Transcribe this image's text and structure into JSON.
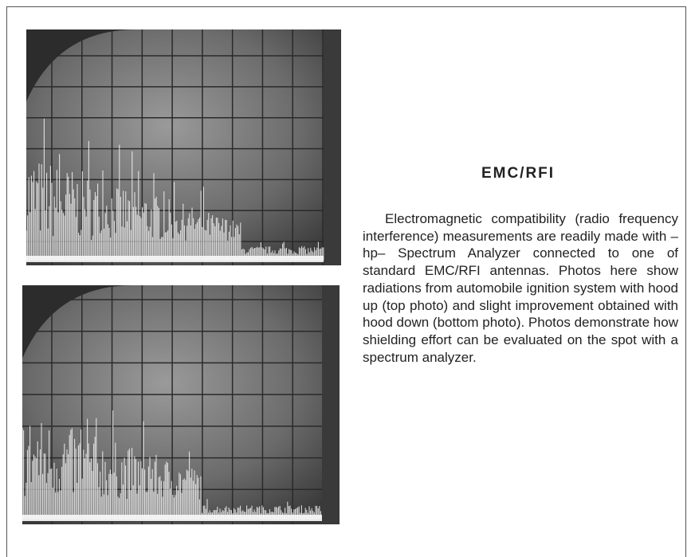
{
  "heading": "EMC/RFI",
  "body": "Electromagnetic compatibility (radio frequency interference) measurements are readily made with –hp– Spectrum Analyzer connected to one of standard EMC/RFI antennas. Photos here show radiations from automobile ignition system with hood up (top photo) and slight improvement obtained with hood down (bottom photo). Photos demonstrate how shielding effort can be evaluated on the spot with a spectrum analyzer."
}
